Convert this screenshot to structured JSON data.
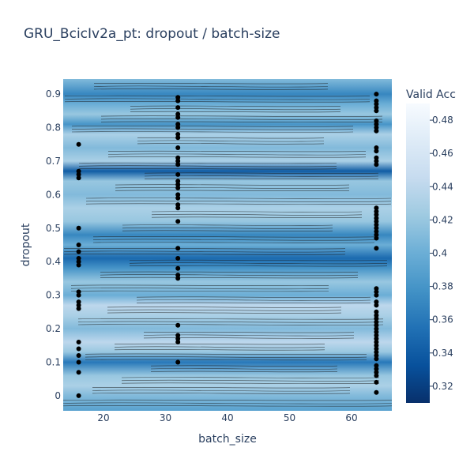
{
  "chart_data": {
    "type": "contour",
    "title": "GRU_BcicIv2a_pt: dropout / batch-size",
    "xlabel": "batch_size",
    "ylabel": "dropout",
    "xlim": [
      13.5,
      66.5
    ],
    "ylim": [
      -0.045,
      0.945
    ],
    "x_ticks": [
      20,
      30,
      40,
      50,
      60
    ],
    "y_ticks": [
      0,
      0.1,
      0.2,
      0.3,
      0.4,
      0.5,
      0.6,
      0.7,
      0.8,
      0.9
    ],
    "colorbar": {
      "title": "Valid Acc",
      "range": [
        0.31,
        0.49
      ],
      "ticks": [
        0.32,
        0.34,
        0.36,
        0.38,
        0.4,
        0.42,
        0.44,
        0.46,
        0.48
      ],
      "colorscale": [
        "#08306b",
        "#08519c",
        "#2171b5",
        "#4292c6",
        "#6baed6",
        "#9ecae1",
        "#c6dbef",
        "#deebf7",
        "#f7fbff"
      ]
    },
    "acc_profile": [
      {
        "y": -0.045,
        "acc": 0.39
      },
      {
        "y": 0.0,
        "acc": 0.41
      },
      {
        "y": 0.03,
        "acc": 0.43
      },
      {
        "y": 0.06,
        "acc": 0.42
      },
      {
        "y": 0.1,
        "acc": 0.36
      },
      {
        "y": 0.13,
        "acc": 0.42
      },
      {
        "y": 0.16,
        "acc": 0.44
      },
      {
        "y": 0.2,
        "acc": 0.41
      },
      {
        "y": 0.24,
        "acc": 0.43
      },
      {
        "y": 0.27,
        "acc": 0.44
      },
      {
        "y": 0.3,
        "acc": 0.4
      },
      {
        "y": 0.34,
        "acc": 0.42
      },
      {
        "y": 0.38,
        "acc": 0.38
      },
      {
        "y": 0.41,
        "acc": 0.35
      },
      {
        "y": 0.45,
        "acc": 0.4
      },
      {
        "y": 0.48,
        "acc": 0.37
      },
      {
        "y": 0.52,
        "acc": 0.42
      },
      {
        "y": 0.56,
        "acc": 0.43
      },
      {
        "y": 0.6,
        "acc": 0.41
      },
      {
        "y": 0.64,
        "acc": 0.42
      },
      {
        "y": 0.67,
        "acc": 0.34
      },
      {
        "y": 0.7,
        "acc": 0.43
      },
      {
        "y": 0.74,
        "acc": 0.41
      },
      {
        "y": 0.78,
        "acc": 0.43
      },
      {
        "y": 0.81,
        "acc": 0.38
      },
      {
        "y": 0.84,
        "acc": 0.42
      },
      {
        "y": 0.87,
        "acc": 0.4
      },
      {
        "y": 0.9,
        "acc": 0.37
      },
      {
        "y": 0.945,
        "acc": 0.41
      }
    ],
    "points": {
      "batch_16": [
        0.0,
        0.07,
        0.1,
        0.12,
        0.14,
        0.16,
        0.26,
        0.27,
        0.28,
        0.3,
        0.31,
        0.39,
        0.4,
        0.41,
        0.43,
        0.45,
        0.5,
        0.65,
        0.66,
        0.67,
        0.75
      ],
      "batch_32": [
        0.1,
        0.16,
        0.17,
        0.18,
        0.21,
        0.35,
        0.36,
        0.38,
        0.41,
        0.44,
        0.52,
        0.56,
        0.57,
        0.59,
        0.6,
        0.62,
        0.63,
        0.64,
        0.66,
        0.69,
        0.7,
        0.71,
        0.74,
        0.77,
        0.78,
        0.8,
        0.81,
        0.83,
        0.84,
        0.86,
        0.88,
        0.89
      ],
      "batch_64": [
        0.01,
        0.04,
        0.06,
        0.07,
        0.08,
        0.09,
        0.11,
        0.12,
        0.13,
        0.14,
        0.15,
        0.16,
        0.17,
        0.18,
        0.19,
        0.2,
        0.21,
        0.22,
        0.23,
        0.24,
        0.25,
        0.27,
        0.28,
        0.3,
        0.31,
        0.32,
        0.44,
        0.47,
        0.48,
        0.49,
        0.5,
        0.51,
        0.52,
        0.53,
        0.54,
        0.55,
        0.56,
        0.69,
        0.7,
        0.71,
        0.73,
        0.74,
        0.79,
        0.8,
        0.81,
        0.82,
        0.85,
        0.86,
        0.87,
        0.88,
        0.9
      ]
    },
    "point_x": {
      "batch_16": 16,
      "batch_32": 32,
      "batch_64": 64
    }
  }
}
